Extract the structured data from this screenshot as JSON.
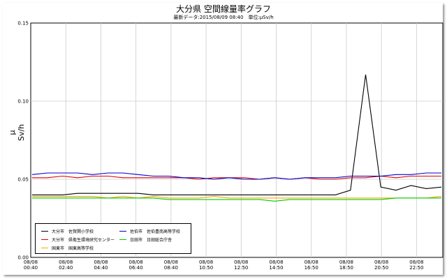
{
  "chart_data": {
    "type": "line",
    "title": "大分県 空間線量率グラフ",
    "subtitle": "最新データ:2015/08/09 08:40　単位:μSv/h",
    "ylabel": "μ Sv/h",
    "ylim": [
      0,
      0.15
    ],
    "yticks": [
      "0.00",
      "0.05",
      "0.10",
      "0.15"
    ],
    "xticks": [
      {
        "date": "08/08",
        "time": "00:40"
      },
      {
        "date": "08/08",
        "time": "02:40"
      },
      {
        "date": "08/08",
        "time": "04:40"
      },
      {
        "date": "08/08",
        "time": "06:40"
      },
      {
        "date": "08/08",
        "time": "08:40"
      },
      {
        "date": "08/08",
        "time": "10:50"
      },
      {
        "date": "08/08",
        "time": "12:50"
      },
      {
        "date": "08/08",
        "time": "14:50"
      },
      {
        "date": "08/08",
        "time": "16:50"
      },
      {
        "date": "08/08",
        "time": "18:50"
      },
      {
        "date": "08/08",
        "time": "20:50"
      },
      {
        "date": "08/08",
        "time": "22:50"
      }
    ],
    "grid": true,
    "legend_position": "bottom-left",
    "series": [
      {
        "name": "大分市　佐賀関小学校",
        "color": "#000000",
        "values": [
          0.04,
          0.04,
          0.04,
          0.041,
          0.041,
          0.041,
          0.041,
          0.041,
          0.04,
          0.04,
          0.04,
          0.04,
          0.04,
          0.04,
          0.04,
          0.04,
          0.04,
          0.04,
          0.04,
          0.04,
          0.04,
          0.043,
          0.117,
          0.045,
          0.043,
          0.046,
          0.044,
          0.045
        ]
      },
      {
        "name": "大分市　県衛生環境研究センター",
        "color": "#e00000",
        "values": [
          0.051,
          0.051,
          0.052,
          0.051,
          0.052,
          0.052,
          0.051,
          0.051,
          0.051,
          0.051,
          0.051,
          0.05,
          0.051,
          0.051,
          0.051,
          0.05,
          0.051,
          0.05,
          0.051,
          0.05,
          0.05,
          0.051,
          0.051,
          0.052,
          0.051,
          0.052,
          0.052,
          0.052
        ]
      },
      {
        "name": "国東市　国東高等学校",
        "color": "#ffa500",
        "values": [
          0.039,
          0.039,
          0.039,
          0.039,
          0.039,
          0.038,
          0.039,
          0.038,
          0.039,
          0.038,
          0.038,
          0.038,
          0.039,
          0.038,
          0.038,
          0.038,
          0.038,
          0.038,
          0.038,
          0.038,
          0.038,
          0.038,
          0.038,
          0.038,
          0.038,
          0.038,
          0.038,
          0.039
        ]
      },
      {
        "name": "佐伯市　佐伯豊南高等学校",
        "color": "#0000cc",
        "values": [
          0.053,
          0.054,
          0.054,
          0.054,
          0.053,
          0.054,
          0.054,
          0.053,
          0.052,
          0.052,
          0.051,
          0.051,
          0.05,
          0.051,
          0.05,
          0.05,
          0.051,
          0.05,
          0.051,
          0.051,
          0.051,
          0.052,
          0.052,
          0.052,
          0.053,
          0.053,
          0.054,
          0.054
        ]
      },
      {
        "name": "日田市　日田総合庁舎",
        "color": "#00cc00",
        "values": [
          0.038,
          0.038,
          0.038,
          0.038,
          0.038,
          0.038,
          0.038,
          0.038,
          0.038,
          0.037,
          0.037,
          0.037,
          0.037,
          0.037,
          0.037,
          0.037,
          0.036,
          0.037,
          0.037,
          0.037,
          0.037,
          0.037,
          0.037,
          0.037,
          0.038,
          0.038,
          0.038,
          0.038
        ]
      }
    ]
  }
}
